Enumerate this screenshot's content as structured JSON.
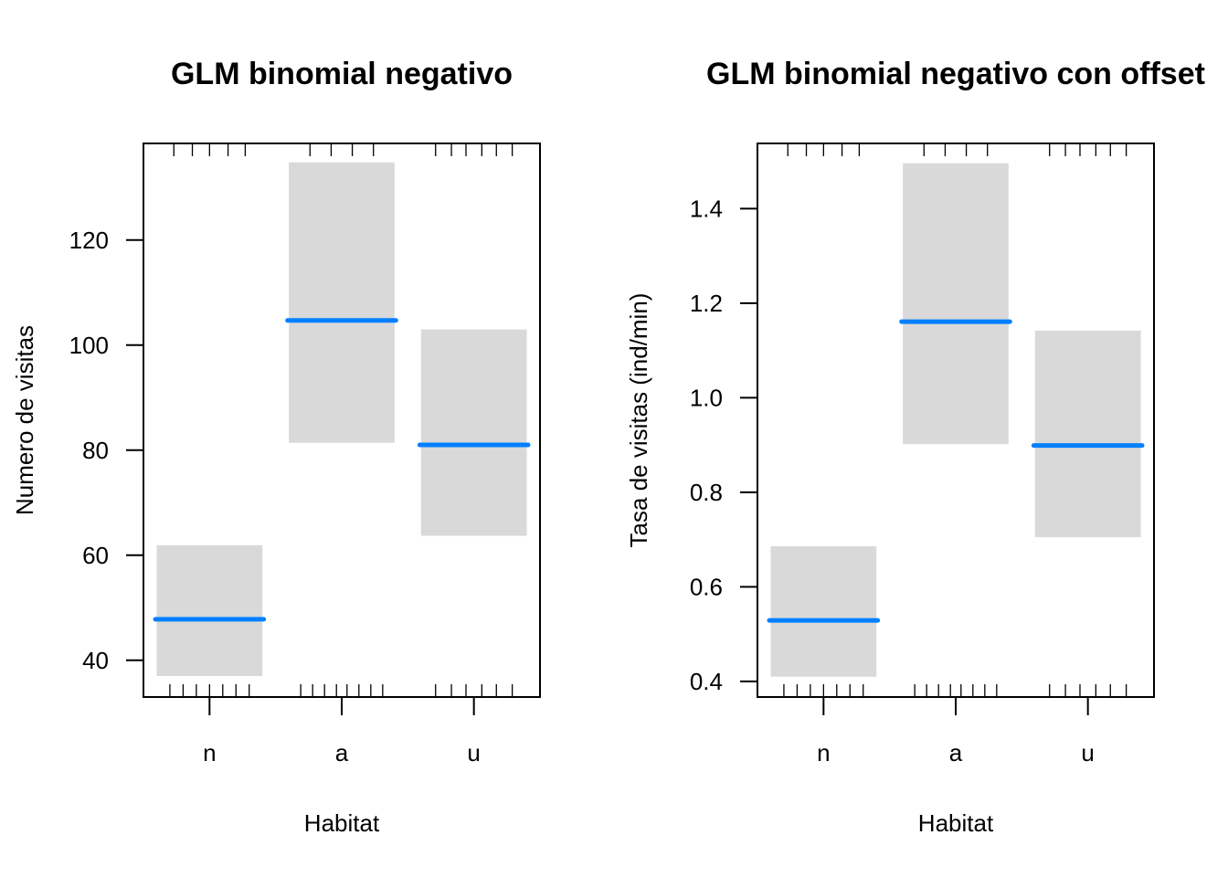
{
  "chart_data": [
    {
      "type": "bar",
      "subtype": "effect-plot-interval",
      "title": "GLM binomial negativo",
      "xlabel": "Habitat",
      "ylabel": "Numero de visitas",
      "categories": [
        "n",
        "a",
        "u"
      ],
      "ylim": [
        33.0,
        138.4
      ],
      "yticks": [
        40,
        60,
        80,
        100,
        120
      ],
      "ytick_labels": [
        "40",
        "60",
        "80",
        "100",
        "120"
      ],
      "grid": false,
      "series": [
        {
          "name": "fit",
          "values": [
            47.8,
            104.7,
            81.0
          ]
        },
        {
          "name": "lower",
          "values": [
            37.0,
            81.4,
            63.7
          ]
        },
        {
          "name": "upper",
          "values": [
            61.9,
            134.8,
            103.0
          ]
        }
      ],
      "rug_bottom": [
        [
          -0.3,
          -0.2,
          -0.1,
          0.0,
          0.1,
          0.2,
          0.3
        ],
        [
          -0.31,
          -0.22,
          -0.13,
          -0.04,
          0.04,
          0.13,
          0.22,
          0.31
        ],
        [
          -0.29,
          -0.17,
          -0.06,
          0.06,
          0.17,
          0.29
        ]
      ],
      "rug_top": [
        [
          -0.27,
          -0.13,
          0.0,
          0.14,
          0.27
        ],
        [
          -0.24,
          -0.08,
          0.08,
          0.24
        ],
        [
          -0.29,
          -0.17,
          -0.06,
          0.06,
          0.17,
          0.29
        ]
      ]
    },
    {
      "type": "bar",
      "subtype": "effect-plot-interval",
      "title": "GLM binomial negativo con offset",
      "xlabel": "Habitat",
      "ylabel": "Tasa de visitas (ind/min)",
      "categories": [
        "n",
        "a",
        "u"
      ],
      "ylim": [
        0.367,
        1.538
      ],
      "yticks": [
        0.4,
        0.6,
        0.8,
        1.0,
        1.2,
        1.4
      ],
      "ytick_labels": [
        "0.4",
        "0.6",
        "0.8",
        "1.0",
        "1.2",
        "1.4"
      ],
      "grid": false,
      "series": [
        {
          "name": "fit",
          "values": [
            0.529,
            1.161,
            0.899
          ]
        },
        {
          "name": "lower",
          "values": [
            0.41,
            0.902,
            0.705
          ]
        },
        {
          "name": "upper",
          "values": [
            0.686,
            1.496,
            1.142
          ]
        }
      ],
      "rug_bottom": [
        [
          -0.3,
          -0.2,
          -0.1,
          0.0,
          0.1,
          0.2,
          0.3
        ],
        [
          -0.31,
          -0.22,
          -0.13,
          -0.04,
          0.04,
          0.13,
          0.22,
          0.31
        ],
        [
          -0.29,
          -0.17,
          -0.06,
          0.06,
          0.17,
          0.29
        ]
      ],
      "rug_top": [
        [
          -0.27,
          -0.13,
          0.0,
          0.14,
          0.27
        ],
        [
          -0.24,
          -0.08,
          0.08,
          0.24
        ],
        [
          -0.29,
          -0.17,
          -0.06,
          0.06,
          0.17,
          0.29
        ]
      ]
    }
  ],
  "colors": {
    "fit_line": "#0080FF",
    "ci_band": "#D9D9D9",
    "axis": "#000000"
  }
}
